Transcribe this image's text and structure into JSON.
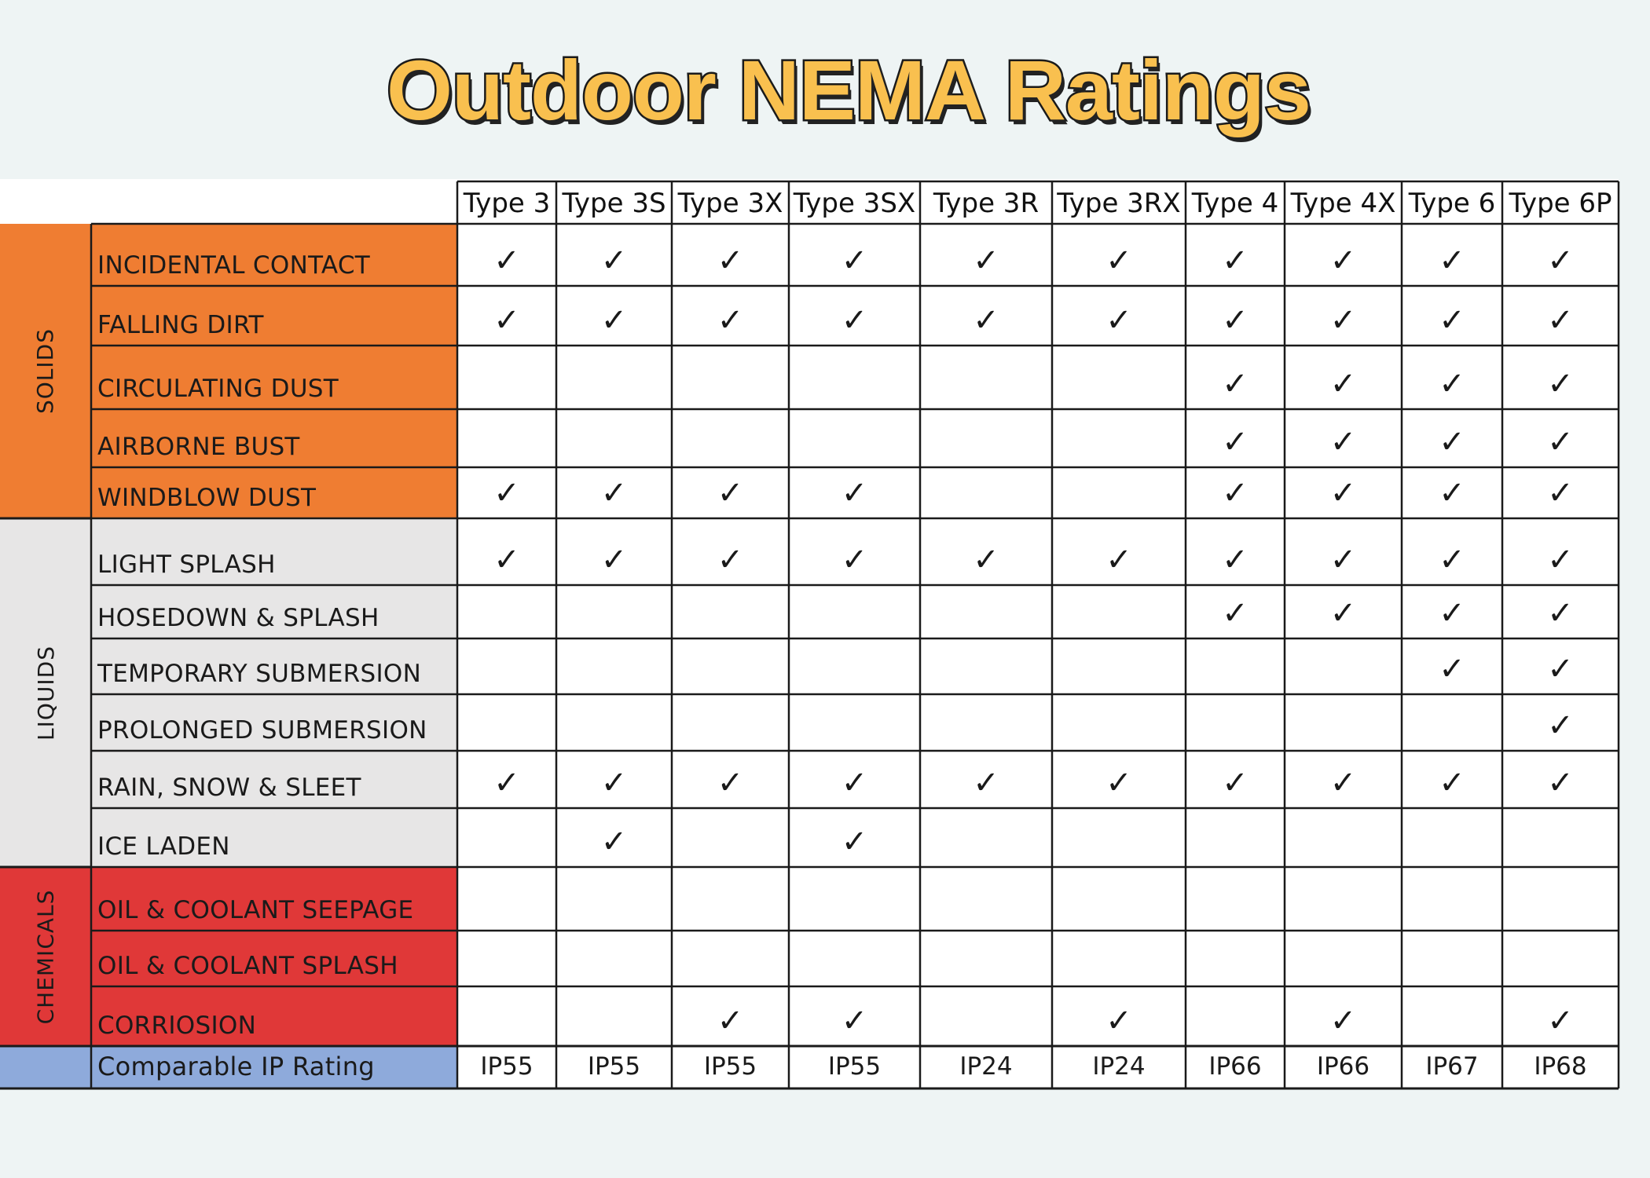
{
  "title": "Outdoor NEMA Ratings",
  "colors": {
    "solids": "#ef7d32",
    "liquids": "#e7e6e6",
    "chemicals": "#e03838",
    "ip_row": "#8eaadb",
    "title_fill": "#f9c04f"
  },
  "check_symbol": "✓",
  "chart_data": {
    "type": "table",
    "columns": [
      "Type 3",
      "Type 3S",
      "Type 3X",
      "Type 3SX",
      "Type 3R",
      "Type 3RX",
      "Type 4",
      "Type 4X",
      "Type 6",
      "Type 6P"
    ],
    "groups": [
      {
        "name": "SOLIDS",
        "rows": [
          {
            "label": "INCIDENTAL CONTACT",
            "checks": [
              1,
              1,
              1,
              1,
              1,
              1,
              1,
              1,
              1,
              1
            ]
          },
          {
            "label": "FALLING DIRT",
            "checks": [
              1,
              1,
              1,
              1,
              1,
              1,
              1,
              1,
              1,
              1
            ]
          },
          {
            "label": "CIRCULATING DUST",
            "checks": [
              0,
              0,
              0,
              0,
              0,
              0,
              1,
              1,
              1,
              1
            ]
          },
          {
            "label": "AIRBORNE BUST",
            "checks": [
              0,
              0,
              0,
              0,
              0,
              0,
              1,
              1,
              1,
              1
            ]
          },
          {
            "label": "WINDBLOW DUST",
            "checks": [
              1,
              1,
              1,
              1,
              0,
              0,
              1,
              1,
              1,
              1
            ]
          }
        ]
      },
      {
        "name": "LIQUIDS",
        "rows": [
          {
            "label": "LIGHT SPLASH",
            "checks": [
              1,
              1,
              1,
              1,
              1,
              1,
              1,
              1,
              1,
              1
            ]
          },
          {
            "label": "HOSEDOWN & SPLASH",
            "checks": [
              0,
              0,
              0,
              0,
              0,
              0,
              1,
              1,
              1,
              1
            ]
          },
          {
            "label": "TEMPORARY SUBMERSION",
            "checks": [
              0,
              0,
              0,
              0,
              0,
              0,
              0,
              0,
              1,
              1
            ]
          },
          {
            "label": "PROLONGED SUBMERSION",
            "checks": [
              0,
              0,
              0,
              0,
              0,
              0,
              0,
              0,
              0,
              1
            ]
          },
          {
            "label": "RAIN, SNOW & SLEET",
            "checks": [
              1,
              1,
              1,
              1,
              1,
              1,
              1,
              1,
              1,
              1
            ]
          },
          {
            "label": "ICE LADEN",
            "checks": [
              0,
              1,
              0,
              1,
              0,
              0,
              0,
              0,
              0,
              0
            ]
          }
        ]
      },
      {
        "name": "CHEMICALS",
        "rows": [
          {
            "label": "OIL & COOLANT SEEPAGE",
            "checks": [
              0,
              0,
              0,
              0,
              0,
              0,
              0,
              0,
              0,
              0
            ]
          },
          {
            "label": "OIL & COOLANT SPLASH",
            "checks": [
              0,
              0,
              0,
              0,
              0,
              0,
              0,
              0,
              0,
              0
            ]
          },
          {
            "label": "CORRIOSION",
            "checks": [
              0,
              0,
              1,
              1,
              0,
              1,
              0,
              1,
              0,
              1
            ]
          }
        ]
      }
    ],
    "ip_row": {
      "label": "Comparable IP Rating",
      "values": [
        "IP55",
        "IP55",
        "IP55",
        "IP55",
        "IP24",
        "IP24",
        "IP66",
        "IP66",
        "IP67",
        "IP68"
      ]
    }
  }
}
